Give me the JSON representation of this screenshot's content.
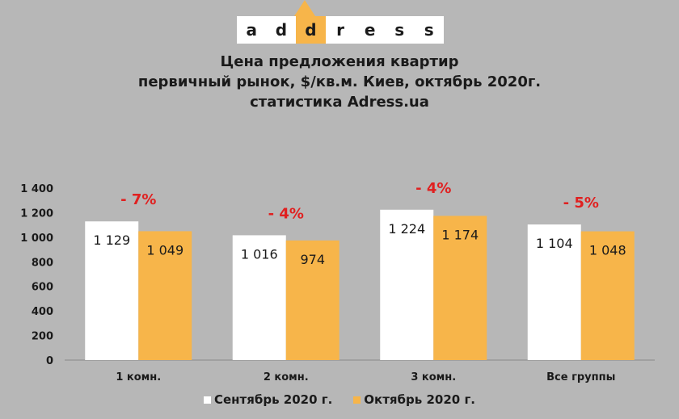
{
  "logo": {
    "letters": [
      "a",
      "d",
      "d",
      "r",
      "e",
      "s",
      "s"
    ],
    "accent_index": 2,
    "accent_color": "#f7b54a"
  },
  "title_lines": [
    "Цена предложения квартир",
    "первичный рынок, $/кв.м. Киев, октябрь 2020г.",
    "статистика Adress.ua"
  ],
  "chart_data": {
    "type": "bar",
    "categories": [
      "1 комн.",
      "2 комн.",
      "3 комн.",
      "Все группы"
    ],
    "series": [
      {
        "name": "Сентябрь 2020 г.",
        "color": "#ffffff",
        "values": [
          1129,
          1016,
          1224,
          1104
        ],
        "labels": [
          "1 129",
          "1 016",
          "1 224",
          "1 104"
        ]
      },
      {
        "name": "Октябрь 2020 г.",
        "color": "#f7b54a",
        "values": [
          1049,
          974,
          1174,
          1048
        ],
        "labels": [
          "1 049",
          "974",
          "1 174",
          "1 048"
        ]
      }
    ],
    "changes": [
      "- 7%",
      "- 4%",
      "- 4%",
      "- 5%"
    ],
    "change_color": "#e02020",
    "ylim": [
      0,
      1400
    ],
    "yticks": [
      0,
      200,
      400,
      600,
      800,
      1000,
      1200,
      1400
    ],
    "ytick_labels": [
      "0",
      "200",
      "400",
      "600",
      "800",
      "1 000",
      "1 200",
      "1 400"
    ],
    "grid": false,
    "legend_position": "bottom"
  }
}
